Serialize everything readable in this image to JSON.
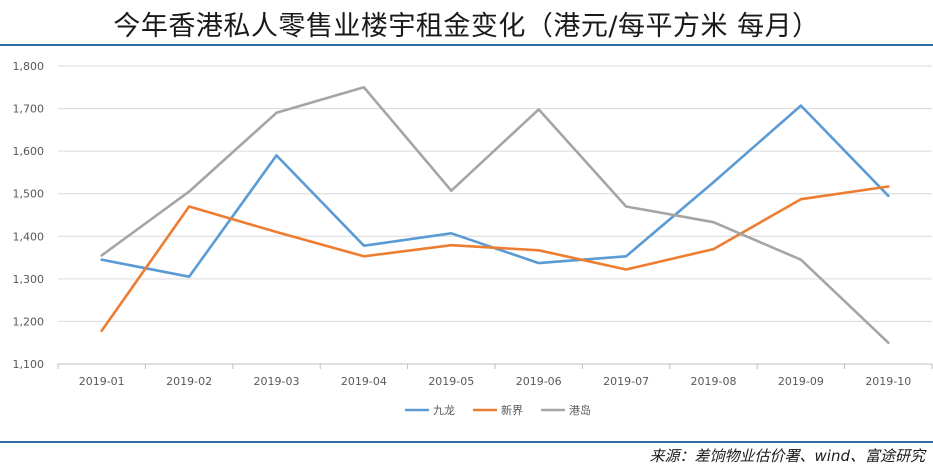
{
  "header": {
    "title": "今年香港私人零售业楼宇租金变化（港元/每平方米 每月）"
  },
  "footer": {
    "source": "来源：差饷物业估价署、wind、富途研究"
  },
  "chart_data": {
    "type": "line",
    "categories": [
      "2019-01",
      "2019-02",
      "2019-03",
      "2019-04",
      "2019-05",
      "2019-06",
      "2019-07",
      "2019-08",
      "2019-09",
      "2019-10"
    ],
    "ylim": [
      1100,
      1800
    ],
    "yticks": [
      "1,100",
      "1,200",
      "1,300",
      "1,400",
      "1,500",
      "1,600",
      "1,700",
      "1,800"
    ],
    "grid": true,
    "legend": "bottom",
    "series": [
      {
        "name": "九龙",
        "color": "#5b9bd5",
        "values": [
          1345,
          1305,
          1590,
          1378,
          1407,
          1337,
          1353,
          1527,
          1707,
          1495
        ]
      },
      {
        "name": "新界",
        "color": "#ed7d31",
        "values": [
          1178,
          1470,
          1410,
          1353,
          1379,
          1367,
          1322,
          1370,
          1487,
          1517
        ]
      },
      {
        "name": "港岛",
        "color": "#a5a5a5",
        "values": [
          1355,
          1505,
          1690,
          1750,
          1507,
          1698,
          1470,
          1433,
          1345,
          1150
        ]
      }
    ]
  }
}
